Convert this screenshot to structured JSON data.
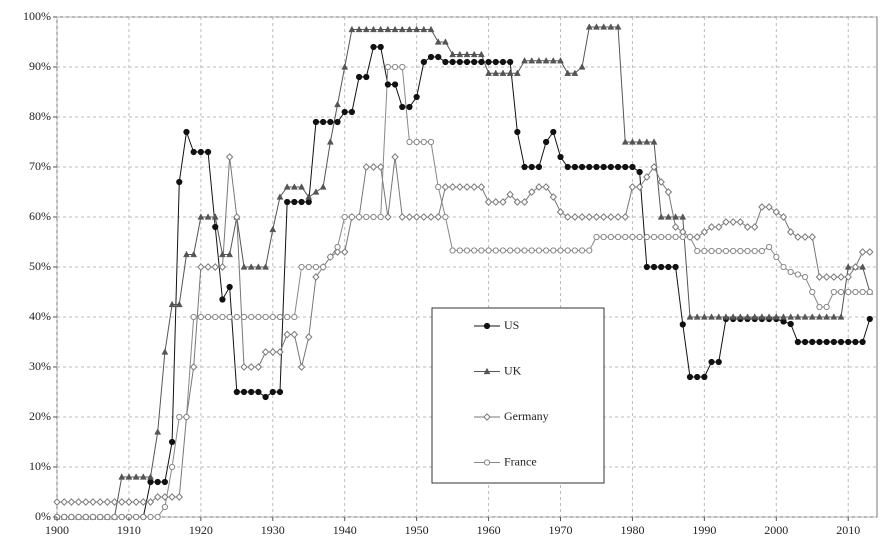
{
  "chart_data": {
    "type": "line",
    "x": [
      1900,
      1901,
      1902,
      1903,
      1904,
      1905,
      1906,
      1907,
      1908,
      1909,
      1910,
      1911,
      1912,
      1913,
      1914,
      1915,
      1916,
      1917,
      1918,
      1919,
      1920,
      1921,
      1922,
      1923,
      1924,
      1925,
      1926,
      1927,
      1928,
      1929,
      1930,
      1931,
      1932,
      1933,
      1934,
      1935,
      1936,
      1937,
      1938,
      1939,
      1940,
      1941,
      1942,
      1943,
      1944,
      1945,
      1946,
      1947,
      1948,
      1949,
      1950,
      1951,
      1952,
      1953,
      1954,
      1955,
      1956,
      1957,
      1958,
      1959,
      1960,
      1961,
      1962,
      1963,
      1964,
      1965,
      1966,
      1967,
      1968,
      1969,
      1970,
      1971,
      1972,
      1973,
      1974,
      1975,
      1976,
      1977,
      1978,
      1979,
      1980,
      1981,
      1982,
      1983,
      1984,
      1985,
      1986,
      1987,
      1988,
      1989,
      1990,
      1991,
      1992,
      1993,
      1994,
      1995,
      1996,
      1997,
      1998,
      1999,
      2000,
      2001,
      2002,
      2003,
      2004,
      2005,
      2006,
      2007,
      2008,
      2009,
      2010,
      2011,
      2012,
      2013
    ],
    "series": [
      {
        "name": "US",
        "color": "#111111",
        "marker": "circle",
        "values": [
          0,
          0,
          0,
          0,
          0,
          0,
          0,
          0,
          0,
          0,
          0,
          0,
          0,
          7,
          7,
          7,
          15,
          67,
          77,
          73,
          73,
          73,
          58,
          43.5,
          46,
          25,
          25,
          25,
          25,
          24,
          25,
          25,
          63,
          63,
          63,
          63,
          79,
          79,
          79,
          79,
          81,
          81,
          88,
          88,
          94,
          94,
          86.5,
          86.5,
          82,
          82,
          84,
          91,
          92,
          92,
          91,
          91,
          91,
          91,
          91,
          91,
          91,
          91,
          91,
          91,
          77,
          70,
          70,
          70,
          75,
          77,
          72,
          70,
          70,
          70,
          70,
          70,
          70,
          70,
          70,
          70,
          70,
          69,
          50,
          50,
          50,
          50,
          50,
          38.5,
          28,
          28,
          28,
          31,
          31,
          39.6,
          39.6,
          39.6,
          39.6,
          39.6,
          39.6,
          39.6,
          39.6,
          39.1,
          38.6,
          35,
          35,
          35,
          35,
          35,
          35,
          35,
          35,
          35,
          35,
          39.6
        ]
      },
      {
        "name": "UK",
        "color": "#555555",
        "marker": "triangle",
        "values": [
          0,
          0,
          0,
          0,
          0,
          0,
          0,
          0,
          0,
          8,
          8,
          8,
          8,
          8,
          17,
          33,
          42.5,
          42.5,
          52.5,
          52.5,
          60,
          60,
          60,
          52.5,
          52.5,
          60,
          50,
          50,
          50,
          50,
          57.5,
          64,
          66,
          66,
          66,
          64,
          65,
          66,
          75,
          82.5,
          90,
          97.5,
          97.5,
          97.5,
          97.5,
          97.5,
          97.5,
          97.5,
          97.5,
          97.5,
          97.5,
          97.5,
          97.5,
          95,
          95,
          92.5,
          92.5,
          92.5,
          92.5,
          92.5,
          88.75,
          88.75,
          88.75,
          88.75,
          88.75,
          91.25,
          91.25,
          91.25,
          91.25,
          91.25,
          91.25,
          88.75,
          88.75,
          90,
          98,
          98,
          98,
          98,
          98,
          75,
          75,
          75,
          75,
          75,
          60,
          60,
          60,
          60,
          40,
          40,
          40,
          40,
          40,
          40,
          40,
          40,
          40,
          40,
          40,
          40,
          40,
          40,
          40,
          40,
          40,
          40,
          40,
          40,
          40,
          40,
          50,
          50,
          50,
          45
        ]
      },
      {
        "name": "Germany",
        "color": "#777777",
        "marker": "diamond",
        "values": [
          3,
          3,
          3,
          3,
          3,
          3,
          3,
          3,
          3,
          3,
          3,
          3,
          3,
          3,
          4,
          4,
          4,
          4,
          20,
          30,
          50,
          50,
          50,
          50,
          72,
          60,
          30,
          30,
          30,
          33,
          33,
          33,
          36.5,
          36.5,
          30,
          36,
          48,
          50,
          52,
          53,
          53,
          60,
          60,
          70,
          70,
          70,
          60,
          72,
          60,
          60,
          60,
          60,
          60,
          60,
          66,
          66,
          66,
          66,
          66,
          66,
          63,
          63,
          63,
          64.5,
          63,
          63,
          65,
          66,
          66,
          64,
          61,
          60,
          60,
          60,
          60,
          60,
          60,
          60,
          60,
          60,
          66,
          66,
          68,
          70,
          67,
          65,
          58,
          57,
          56,
          56,
          57,
          58,
          58,
          59,
          59,
          59,
          58,
          58,
          62,
          62,
          61,
          60,
          57,
          56,
          56,
          56,
          48,
          48,
          48,
          48,
          48,
          50,
          53,
          53
        ]
      },
      {
        "name": "France",
        "color": "#888888",
        "marker": "circle-open",
        "values": [
          0,
          0,
          0,
          0,
          0,
          0,
          0,
          0,
          0,
          0,
          0,
          0,
          0,
          0,
          0,
          2,
          10,
          20,
          20,
          40,
          40,
          40,
          40,
          40,
          40,
          40,
          40,
          40,
          40,
          40,
          40,
          40,
          40,
          40,
          50,
          50,
          50,
          50,
          52,
          54,
          60,
          60,
          60,
          60,
          60,
          60,
          90,
          90,
          90,
          75,
          75,
          75,
          75,
          66,
          60,
          53.3,
          53.3,
          53.3,
          53.3,
          53.3,
          53.3,
          53.3,
          53.3,
          53.3,
          53.3,
          53.3,
          53.3,
          53.3,
          53.3,
          53.3,
          53.3,
          53.3,
          53.3,
          53.3,
          53.3,
          56,
          56,
          56,
          56,
          56,
          56,
          56,
          56,
          56,
          56,
          56,
          56,
          56,
          56,
          53.2,
          53.2,
          53.2,
          53.2,
          53.2,
          53.2,
          53.2,
          53.2,
          53.2,
          53.2,
          54,
          52,
          50,
          49,
          48.5,
          48,
          45,
          42,
          42,
          45,
          45,
          45,
          45,
          45,
          45
        ]
      }
    ],
    "xlim": [
      1900,
      2014
    ],
    "xticks": [
      1900,
      1910,
      1920,
      1930,
      1940,
      1950,
      1960,
      1970,
      1980,
      1990,
      2000,
      2010
    ],
    "ylim": [
      0,
      100
    ],
    "yticks": [
      {
        "value": 0,
        "label": "0%"
      },
      {
        "value": 10,
        "label": "10%"
      },
      {
        "value": 20,
        "label": "20%"
      },
      {
        "value": 30,
        "label": "30%"
      },
      {
        "value": 40,
        "label": "40%"
      },
      {
        "value": 50,
        "label": "50%"
      },
      {
        "value": 60,
        "label": "60%"
      },
      {
        "value": 70,
        "label": "70%"
      },
      {
        "value": 80,
        "label": "80%"
      },
      {
        "value": 90,
        "label": "90%"
      },
      {
        "value": 100,
        "label": "100%"
      }
    ],
    "grid": true
  }
}
